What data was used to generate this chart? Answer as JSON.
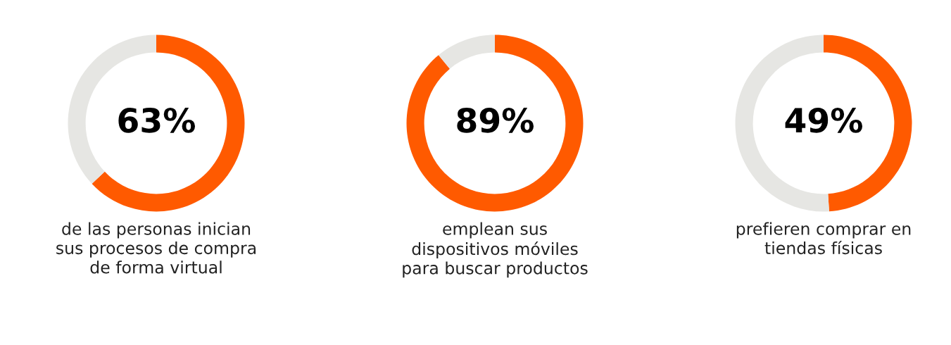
{
  "chart_data": [
    {
      "type": "donut",
      "title": "de las personas inician\nsus procesos de compra\nde forma virtual",
      "categories": [
        null,
        null
      ],
      "values": [
        63,
        37
      ],
      "colors": [
        "#ff5a00",
        "#e6e6e3"
      ],
      "value_labels": [
        "63%",
        null
      ]
    },
    {
      "type": "donut",
      "title": "emplean sus\ndispositivos móviles\npara buscar productos",
      "categories": [
        null,
        null
      ],
      "values": [
        89,
        11
      ],
      "colors": [
        "#ff5a00",
        "#e6e6e3"
      ],
      "value_labels": [
        "89%",
        null
      ]
    },
    {
      "type": "donut",
      "title": "prefieren comprar en\ntiendas físicas",
      "categories": [
        null,
        null
      ],
      "values": [
        49,
        51
      ],
      "colors": [
        "#ff5a00",
        "#e6e6e3"
      ],
      "value_labels": [
        "49%",
        null
      ]
    }
  ]
}
